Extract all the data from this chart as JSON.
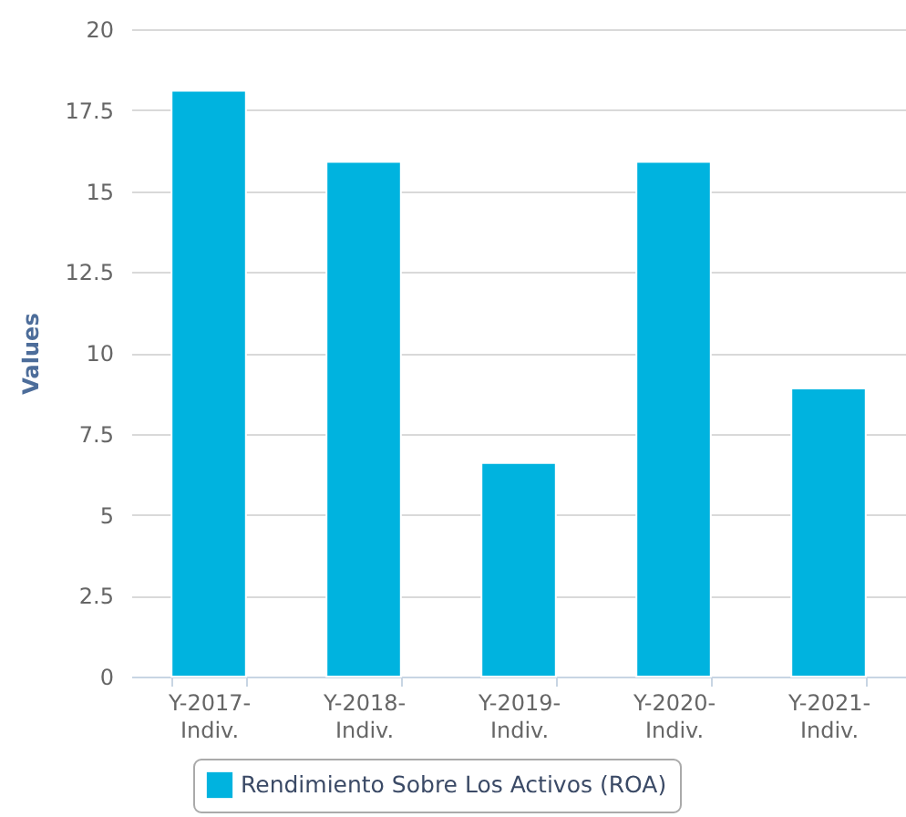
{
  "chart_data": {
    "type": "bar",
    "categories": [
      "Y-2017-Indiv.",
      "Y-2018-Indiv.",
      "Y-2019-Indiv.",
      "Y-2020-Indiv.",
      "Y-2021-Indiv."
    ],
    "series": [
      {
        "name": "Rendimiento Sobre Los Activos (ROA)",
        "color": "#00b3df",
        "values": [
          18.1,
          15.9,
          6.6,
          15.9,
          8.9
        ]
      }
    ],
    "ylabel": "Values",
    "ylim": [
      0,
      20
    ],
    "yticks": [
      0,
      2.5,
      5,
      7.5,
      10,
      12.5,
      15,
      17.5,
      20
    ],
    "grid": "y",
    "legend": "bottom"
  }
}
